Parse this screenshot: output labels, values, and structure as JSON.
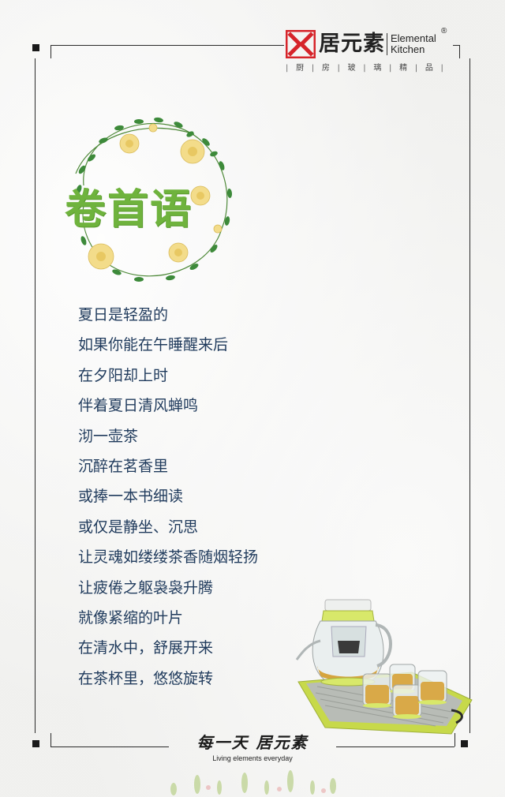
{
  "brand": {
    "name_cn": "居元素",
    "name_en_line1": "Elemental",
    "name_en_line2": "Kitchen",
    "registered_mark": "®",
    "categories": [
      "厨",
      "房",
      "玻",
      "璃",
      "精",
      "品"
    ],
    "separator": "|",
    "logo_icon": "jy-logo-icon",
    "logo_color": "#d6242a"
  },
  "title": "卷首语",
  "title_color": "#6fb33d",
  "poem_color": "#1f3a5c",
  "poem": [
    "夏日是轻盈的",
    "如果你能在午睡醒来后",
    "在夕阳却上时",
    "伴着夏日清风蝉鸣",
    "沏一壶茶",
    "沉醉在茗香里",
    "或捧一本书细读",
    "或仅是静坐、沉思",
    "让灵魂如缕缕茶香随烟轻扬",
    "让疲倦之躯袅袅升腾",
    "就像紧缩的叶片",
    "在清水中，舒展开来",
    "在茶杯里，悠悠旋转"
  ],
  "footer": {
    "slogan": "每一天 居元素",
    "tagline": "Living elements everyday"
  }
}
